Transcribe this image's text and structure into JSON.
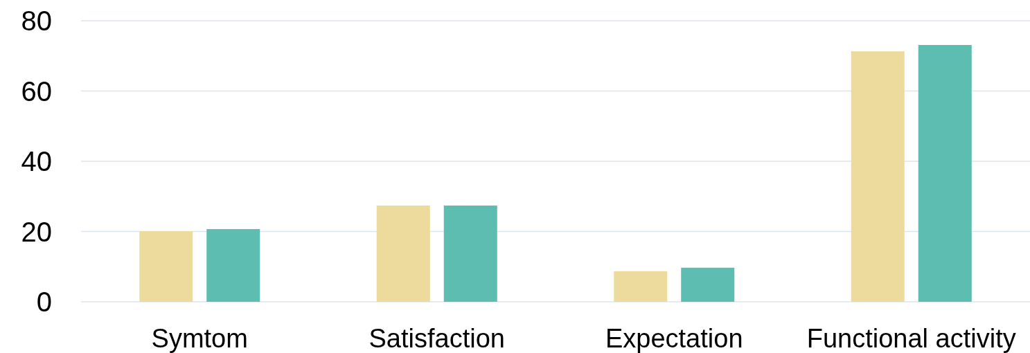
{
  "chart_data": {
    "type": "bar",
    "categories": [
      "Symtom",
      "Satisfaction",
      "Expectation",
      "Functional activity"
    ],
    "series": [
      {
        "color": "#eddb9e",
        "values": [
          20.1,
          27.4,
          8.7,
          71.3
        ]
      },
      {
        "color": "#5dbdb1",
        "values": [
          20.7,
          27.4,
          9.7,
          73.1
        ]
      }
    ],
    "ylim": [
      0,
      80
    ],
    "yticks": [
      0,
      20,
      40,
      60,
      80
    ],
    "grid": "y"
  }
}
